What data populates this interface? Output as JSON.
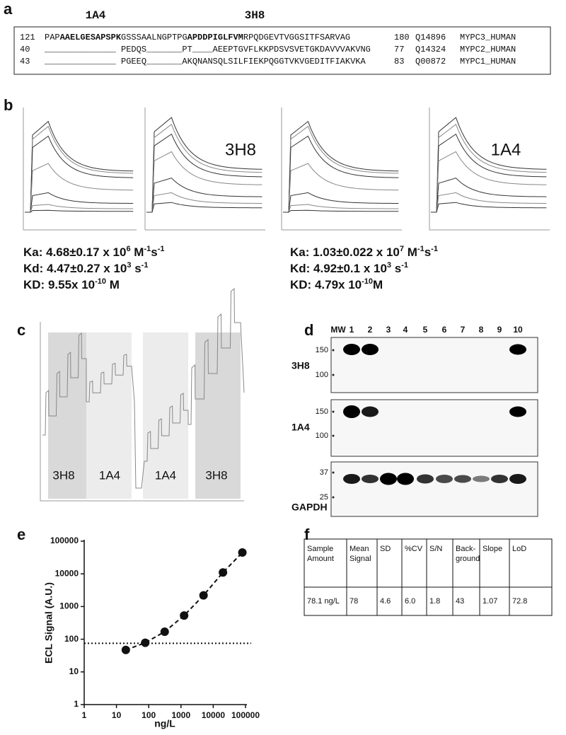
{
  "panel_labels": [
    "a",
    "b",
    "c",
    "d",
    "e",
    "f"
  ],
  "sequence": {
    "antibody_labels": [
      "1A4",
      "3H8"
    ],
    "rows": [
      {
        "start": "121",
        "segments": [
          {
            "text": "PAP",
            "bold": false
          },
          {
            "text": "AAELGESAPSPK",
            "bold": true
          },
          {
            "text": "GSSSAALNGPTPG",
            "bold": false
          },
          {
            "text": "APDDPIGLFVM",
            "bold": true
          },
          {
            "text": "RPQDGEVTVGGSITFSARVAG",
            "bold": false
          }
        ],
        "end": "180",
        "accession": "Q14896",
        "name": "MYPC3_HUMAN"
      },
      {
        "start": "40",
        "segments": [
          {
            "text": "______________ PEDQS_______PT____AEEPTGVFLKKPDSVSVETGKDAVVVAKVNG",
            "bold": false
          }
        ],
        "end": "77",
        "accession": "Q14324",
        "name": "MYPC2_HUMAN"
      },
      {
        "start": "43",
        "segments": [
          {
            "text": "______________ PGEEQ_______AKQNANSQLSILFIEKPQGGTVKVGEDITFIAKVKA",
            "bold": false
          }
        ],
        "end": "83",
        "accession": "Q00872",
        "name": "MYPC1_HUMAN"
      }
    ]
  },
  "sensorgram_labels": [
    "3H8",
    "1A4"
  ],
  "kinetics": [
    [
      [
        {
          "t": "Ka: 4.68±0.17 x 10"
        },
        {
          "t": "6",
          "sup": true
        },
        {
          "t": " M"
        },
        {
          "t": "-1",
          "sup": true
        },
        {
          "t": "s"
        },
        {
          "t": "-1",
          "sup": true
        }
      ],
      [
        {
          "t": "Kd: 4.47±0.27 x 10"
        },
        {
          "t": "3",
          "sup": true
        },
        {
          "t": " s"
        },
        {
          "t": "-1",
          "sup": true
        }
      ],
      [
        {
          "t": "KD: 9.55x 10"
        },
        {
          "t": "-10",
          "sup": true
        },
        {
          "t": " M"
        }
      ]
    ],
    [
      [
        {
          "t": "Ka: 1.03±0.022 x 10"
        },
        {
          "t": "7",
          "sup": true
        },
        {
          "t": " M"
        },
        {
          "t": "-1",
          "sup": true
        },
        {
          "t": "s"
        },
        {
          "t": "-1",
          "sup": true
        }
      ],
      [
        {
          "t": "Kd: 4.92±0.1 x 10"
        },
        {
          "t": "3",
          "sup": true
        },
        {
          "t": " s"
        },
        {
          "t": "-1",
          "sup": true
        }
      ],
      [
        {
          "t": "KD: 4.79x 10"
        },
        {
          "t": "-10",
          "sup": true
        },
        {
          "t": "M"
        }
      ]
    ]
  ],
  "competition_labels": [
    "3H8",
    "1A4",
    "1A4",
    "3H8"
  ],
  "blot": {
    "lanes": [
      "MW",
      "1",
      "2",
      "3",
      "4",
      "5",
      "6",
      "7",
      "8",
      "9",
      "10"
    ],
    "rows": [
      {
        "label": "3H8",
        "markers": [
          "150",
          "100"
        ]
      },
      {
        "label": "1A4",
        "markers": [
          "150",
          "100"
        ]
      },
      {
        "label": "GAPDH",
        "markers": [
          "37",
          "25"
        ]
      }
    ]
  },
  "chart_data": {
    "type": "scatter",
    "xlabel": "ng/L",
    "ylabel": "ECL Signal (A.U.)",
    "x": [
      19.5,
      78.1,
      312.5,
      1250,
      5000,
      20000,
      80000
    ],
    "values": [
      47,
      78,
      170,
      530,
      2200,
      11000,
      45000
    ],
    "color": "#111111",
    "log_scale": true,
    "reference_line": 75,
    "xlim": [
      1,
      100000
    ],
    "xticks": [
      1,
      10,
      100,
      1000,
      10000,
      100000
    ],
    "ylim": [
      1,
      100000
    ],
    "yticks": [
      1,
      10,
      100,
      1000,
      10000,
      100000
    ]
  },
  "table": {
    "headers": [
      "Sample Amount",
      "Mean Signal",
      "SD",
      "%CV",
      "S/N",
      "Back-ground",
      "Slope",
      "LoD"
    ],
    "rows": [
      [
        "78.1 ng/L",
        "78",
        "4.6",
        "6.0",
        "1.8",
        "43",
        "1.07",
        "72.8"
      ]
    ]
  }
}
